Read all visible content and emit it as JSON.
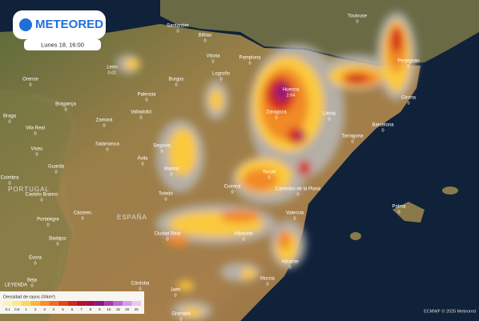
{
  "header": {
    "logo": "METEORED",
    "time": "Lunes 18, 16:00"
  },
  "regions": [
    "PORTUGAL",
    "ESPAÑA"
  ],
  "cities": [
    {
      "name": "Santander",
      "value": 0
    },
    {
      "name": "Bilbao",
      "value": 0
    },
    {
      "name": "Vitoria",
      "value": 0
    },
    {
      "name": "Pamplona",
      "value": 0
    },
    {
      "name": "Logroño",
      "value": 0
    },
    {
      "name": "León",
      "value": 0.01
    },
    {
      "name": "Burgos",
      "value": 0
    },
    {
      "name": "Palencia",
      "value": 0
    },
    {
      "name": "Valladolid",
      "value": 0
    },
    {
      "name": "Zamora",
      "value": 0
    },
    {
      "name": "Salamanca",
      "value": 0
    },
    {
      "name": "Ávila",
      "value": 0
    },
    {
      "name": "Segovia",
      "value": 0
    },
    {
      "name": "Madrid",
      "value": 0
    },
    {
      "name": "Toledo",
      "value": 0
    },
    {
      "name": "Cuenca",
      "value": 0
    },
    {
      "name": "Huesca",
      "value": 2.64
    },
    {
      "name": "Zaragoza",
      "value": 0
    },
    {
      "name": "Lleida",
      "value": 0
    },
    {
      "name": "Barcelona",
      "value": 0
    },
    {
      "name": "Tarragona",
      "value": 0
    },
    {
      "name": "Girona",
      "value": 0
    },
    {
      "name": "Teruel",
      "value": 0
    },
    {
      "name": "Castellón de la Plana",
      "value": 0
    },
    {
      "name": "Valencia",
      "value": 0
    },
    {
      "name": "Albacete",
      "value": 0
    },
    {
      "name": "Ciudad Real",
      "value": 0
    },
    {
      "name": "Alicante",
      "value": 0
    },
    {
      "name": "Murcia",
      "value": 0
    },
    {
      "name": "Córdoba",
      "value": 0
    },
    {
      "name": "Jaén",
      "value": 0
    },
    {
      "name": "Granada",
      "value": 0
    },
    {
      "name": "Cáceres",
      "value": 0
    },
    {
      "name": "Badajoz",
      "value": 0
    },
    {
      "name": "Orense",
      "value": 0
    },
    {
      "name": "Braga",
      "value": 0
    },
    {
      "name": "Vila Real",
      "value": 0
    },
    {
      "name": "Bragança",
      "value": 0
    },
    {
      "name": "Viseu",
      "value": 0
    },
    {
      "name": "Guarda",
      "value": 0
    },
    {
      "name": "Coimbra",
      "value": 0
    },
    {
      "name": "Castelo Branco",
      "value": 0
    },
    {
      "name": "Portalegre",
      "value": 0
    },
    {
      "name": "Évora",
      "value": 0
    },
    {
      "name": "Beja",
      "value": 0
    },
    {
      "name": "Toulouse",
      "value": 0
    },
    {
      "name": "Perpignan",
      "value": 0
    },
    {
      "name": "Palma",
      "value": 0
    }
  ],
  "legend": {
    "heading": "LEYENDA",
    "title": "Densidad de rayos (#/km²)",
    "labels": [
      "0.1",
      "0.5",
      "1",
      "2",
      "3",
      "4",
      "5",
      "6",
      "7",
      "8",
      "9",
      "10",
      "15",
      "20",
      "25"
    ],
    "colors": [
      "#fdf3b0",
      "#fde98a",
      "#fdd65d",
      "#fbb53c",
      "#f99028",
      "#f26a1d",
      "#e5451c",
      "#d2251e",
      "#b5122c",
      "#a0104c",
      "#8d1a78",
      "#a23bb0",
      "#c266d6",
      "#d89ce8",
      "#eac8f3"
    ]
  },
  "footer": {
    "credit": "ECMWF © 2025 Meteored"
  }
}
